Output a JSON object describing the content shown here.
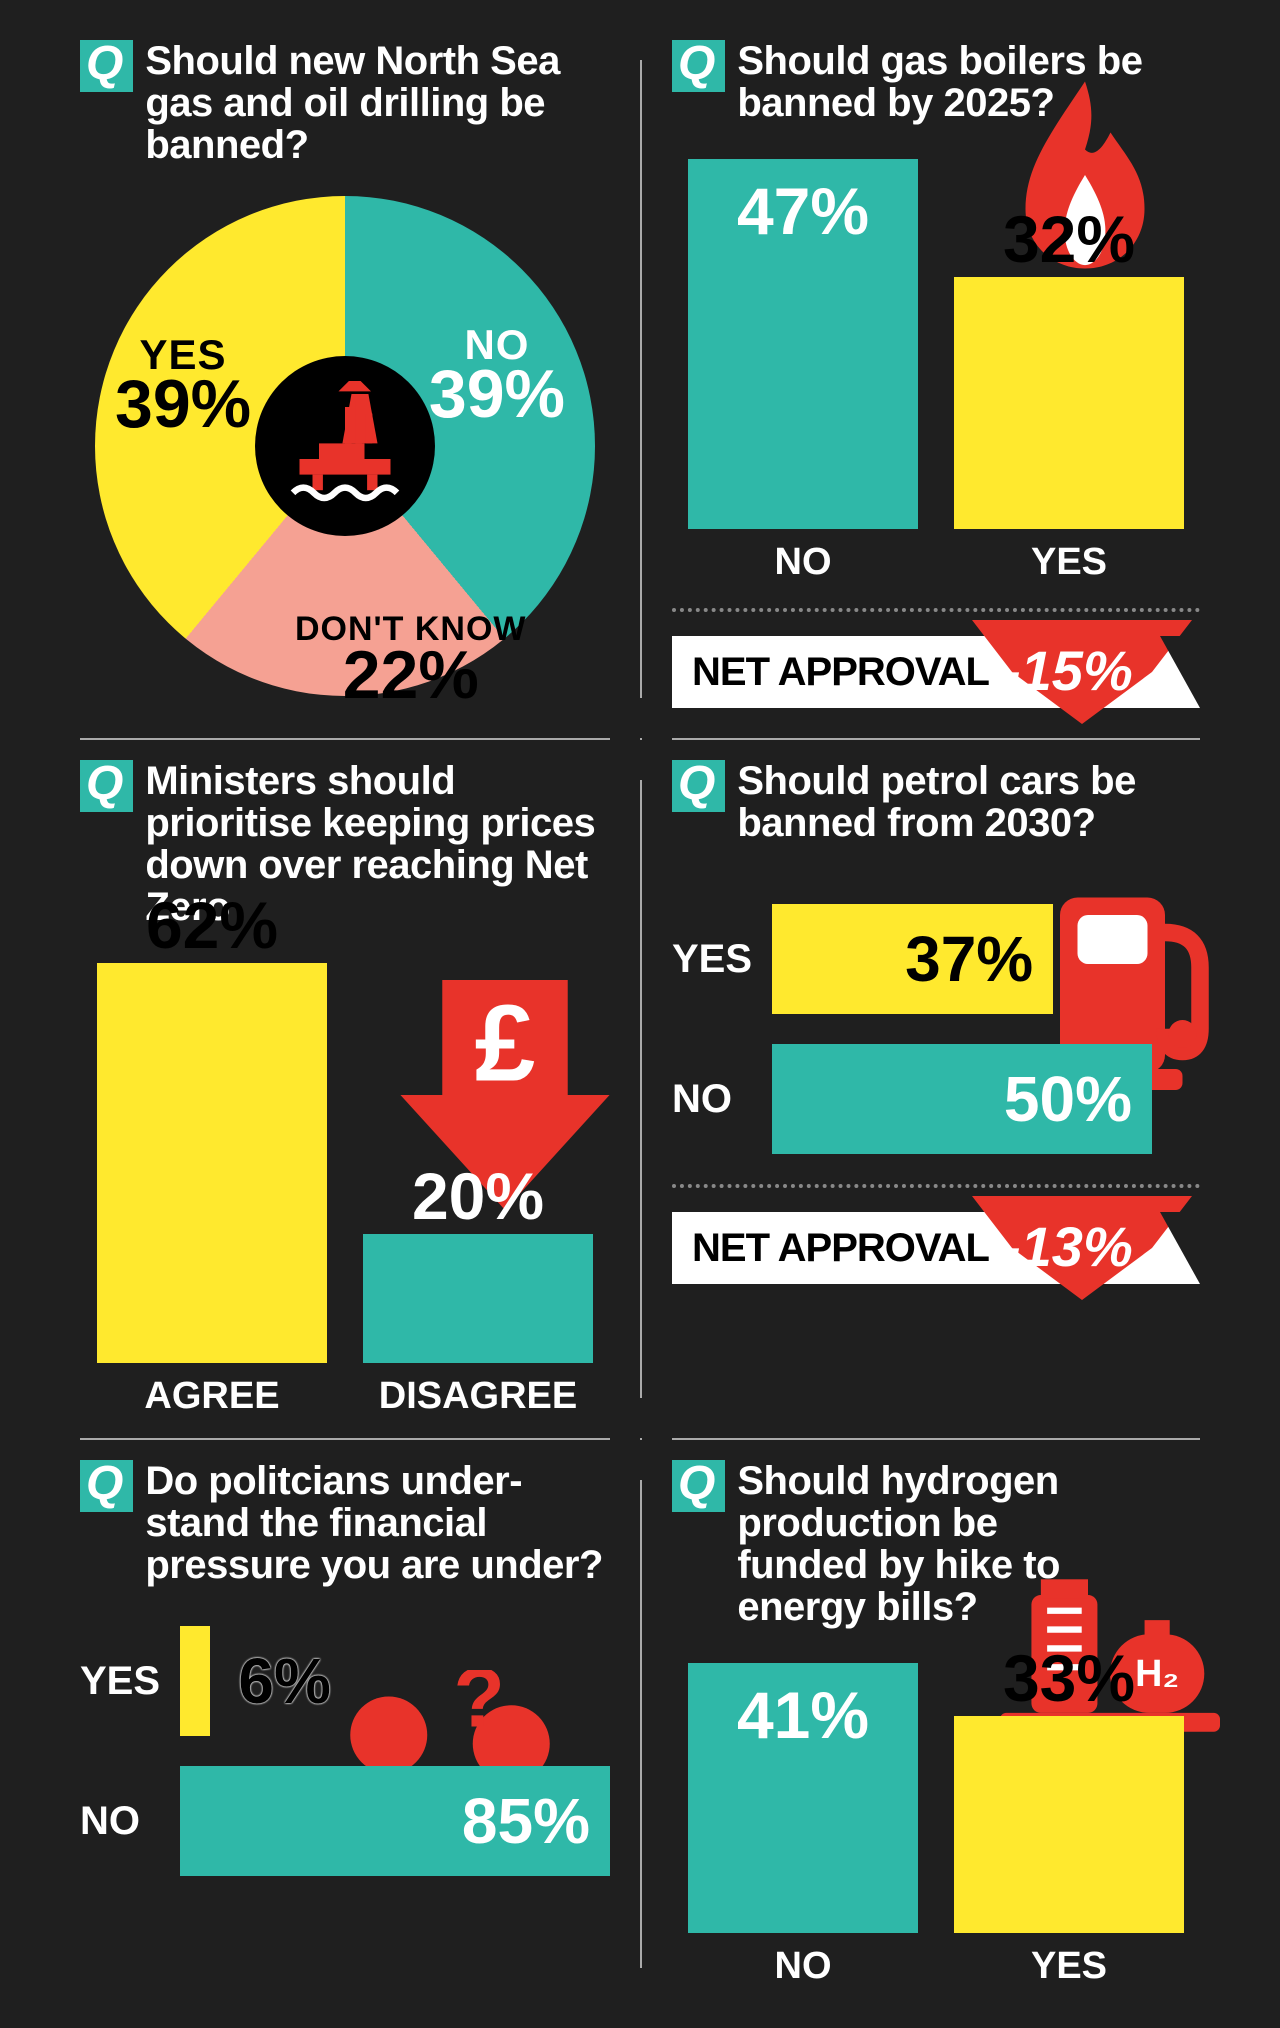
{
  "colors": {
    "bg": "#1f1f1f",
    "teal": "#2fb8a8",
    "yellow": "#ffe92e",
    "pink": "#f5a193",
    "red": "#e8332a",
    "white": "#ffffff",
    "black": "#000000"
  },
  "q_badge": "Q",
  "panel1": {
    "question": "Should new North Sea gas and oil drilling be banned?",
    "type": "pie",
    "slices": [
      {
        "label": "YES",
        "value": "39%",
        "pct": 39,
        "color": "#ffe92e",
        "text_color": "#000000"
      },
      {
        "label": "NO",
        "value": "39%",
        "pct": 39,
        "color": "#2fb8a8",
        "text_color": "#ffffff"
      },
      {
        "label": "DON'T KNOW",
        "value": "22%",
        "pct": 22,
        "color": "#f5a193",
        "text_color": "#000000"
      }
    ],
    "center_icon": "oil-rig"
  },
  "panel2": {
    "question": "Should gas boilers be banned by 2025?",
    "type": "bar-vertical",
    "bars": [
      {
        "label": "NO",
        "value": "47%",
        "pct": 47,
        "color": "#2fb8a8",
        "text_color": "#ffffff",
        "val_pos": "inside"
      },
      {
        "label": "YES",
        "value": "32%",
        "pct": 32,
        "color": "#ffe92e",
        "text_color": "#000000",
        "val_pos": "above"
      }
    ],
    "icon": "flame",
    "net_approval_label": "NET APPROVAL",
    "net_approval_value": "-15%"
  },
  "panel3": {
    "question": "Ministers should prioritise keeping prices down over reaching Net Zero",
    "type": "bar-vertical",
    "bars": [
      {
        "label": "AGREE",
        "value": "62%",
        "pct": 62,
        "color": "#ffe92e",
        "text_color": "#000000",
        "val_pos": "above"
      },
      {
        "label": "DISAGREE",
        "value": "20%",
        "pct": 20,
        "color": "#2fb8a8",
        "text_color": "#ffffff",
        "val_pos": "above"
      }
    ],
    "icon": "pound-arrow"
  },
  "panel4": {
    "question": "Should petrol cars be banned from 2030?",
    "type": "bar-horizontal",
    "bars": [
      {
        "label": "YES",
        "value": "37%",
        "pct": 37,
        "color": "#ffe92e",
        "text_color": "#000000"
      },
      {
        "label": "NO",
        "value": "50%",
        "pct": 50,
        "color": "#2fb8a8",
        "text_color": "#ffffff"
      }
    ],
    "icon": "fuel-pump",
    "net_approval_label": "NET APPROVAL",
    "net_approval_value": "-13%"
  },
  "panel5": {
    "question": "Do politcians under­stand the financial pressure you are under?",
    "type": "bar-horizontal",
    "bars": [
      {
        "label": "YES",
        "value": "6%",
        "pct": 6,
        "color": "#ffe92e",
        "text_color": "#000000",
        "val_outside": true
      },
      {
        "label": "NO",
        "value": "85%",
        "pct": 85,
        "color": "#2fb8a8",
        "text_color": "#ffffff"
      }
    ],
    "icon": "people-question"
  },
  "panel6": {
    "question": "Should hydrogen production be funded by hike to energy bills?",
    "type": "bar-vertical",
    "bars": [
      {
        "label": "NO",
        "value": "41%",
        "pct": 41,
        "color": "#2fb8a8",
        "text_color": "#ffffff",
        "val_pos": "inside"
      },
      {
        "label": "YES",
        "value": "33%",
        "pct": 33,
        "color": "#ffe92e",
        "text_color": "#000000",
        "val_pos": "above"
      }
    ],
    "icon": "hydrogen-tank",
    "icon_label": "H₂"
  }
}
